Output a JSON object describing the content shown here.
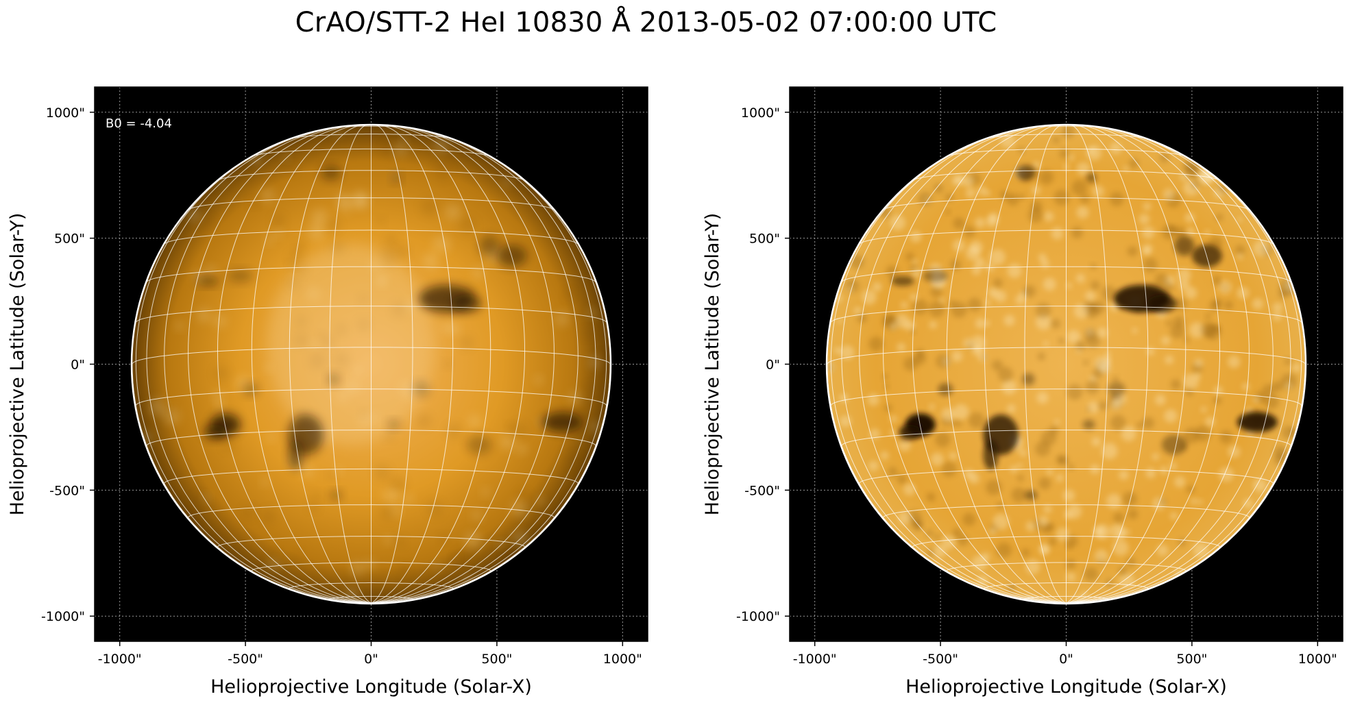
{
  "figure": {
    "title": "CrAO/STT-2 HeI 10830 Å 2013-05-02 07:00:00 UTC"
  },
  "panels": [
    {
      "xlabel": "Helioprojective Longitude (Solar-X)",
      "ylabel": "Helioprojective Latitude (Solar-Y)",
      "annotation": "B0 = -4.04",
      "style": "limb-darkened",
      "x_ticks": [
        "-1000\"",
        "-500\"",
        "0\"",
        "500\"",
        "1000\""
      ],
      "y_ticks": [
        "1000\"",
        "500\"",
        "0\"",
        "-500\"",
        "-1000\""
      ]
    },
    {
      "xlabel": "Helioprojective Longitude (Solar-X)",
      "ylabel": "Helioprojective Latitude (Solar-Y)",
      "annotation": "",
      "style": "limb-corrected",
      "x_ticks": [
        "-1000\"",
        "-500\"",
        "0\"",
        "500\"",
        "1000\""
      ],
      "y_ticks": [
        "1000\"",
        "500\"",
        "0\"",
        "-500\"",
        "-1000\""
      ]
    }
  ],
  "solar": {
    "b0_deg": -4.04,
    "radius_arcsec": 950,
    "extent_arcsec": [
      -1100,
      1100
    ],
    "tick_values_arcsec": [
      -1000,
      -500,
      0,
      500,
      1000
    ],
    "grid_spacing_deg": 10
  },
  "colors": {
    "disk_base": "#c8860a",
    "disk_bright": "#f0c070",
    "background": "#000000",
    "grid": "#ffffff"
  }
}
